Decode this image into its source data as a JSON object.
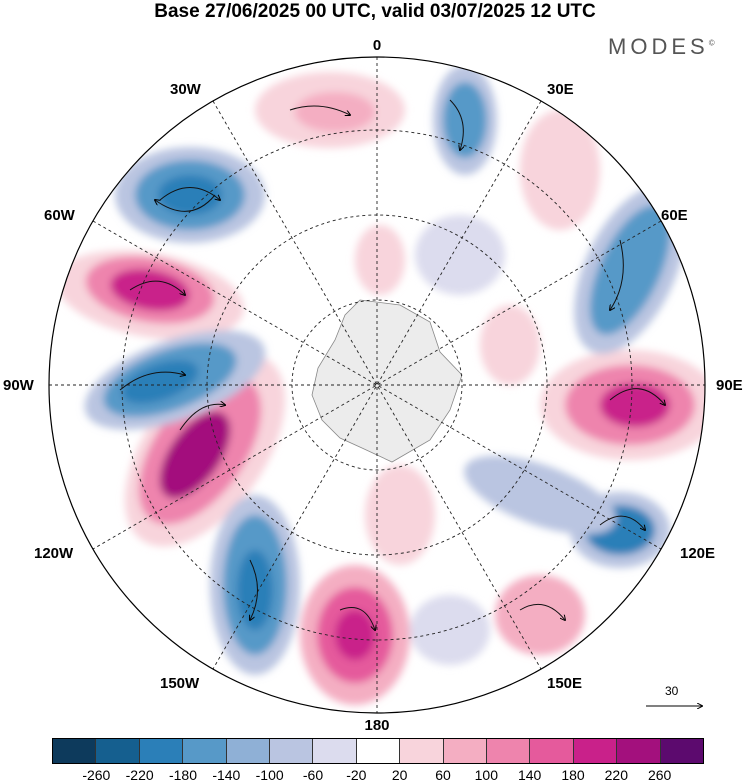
{
  "title": "Base 27/06/2025 00 UTC, valid 03/07/2025 12 UTC",
  "brand": "MODES",
  "brand_mark": "©",
  "map": {
    "projection": "polar-stereographic-south",
    "longitude_labels": {
      "lon_0": "0",
      "lon_30e": "30E",
      "lon_60e": "60E",
      "lon_90e": "90E",
      "lon_120e": "120E",
      "lon_150e": "150E",
      "lon_180": "180",
      "lon_150w": "150W",
      "lon_120w": "120W",
      "lon_90w": "90W",
      "lon_60w": "60W",
      "lon_30w": "30W"
    },
    "reference_vector": "30",
    "grid": "on"
  },
  "colorbar": {
    "colors": [
      "#0d3a5c",
      "#155f8f",
      "#2b7fb8",
      "#5799c8",
      "#8fb0d6",
      "#bac5e1",
      "#dcdcee",
      "#ffffff",
      "#f8d4dc",
      "#f4aec2",
      "#ee84ad",
      "#e55a9c",
      "#c9218a",
      "#a3107d",
      "#5c0a6e"
    ],
    "tick_labels": [
      "-260",
      "-220",
      "-180",
      "-140",
      "-100",
      "-60",
      "-20",
      "20",
      "60",
      "100",
      "140",
      "180",
      "220",
      "260"
    ]
  }
}
